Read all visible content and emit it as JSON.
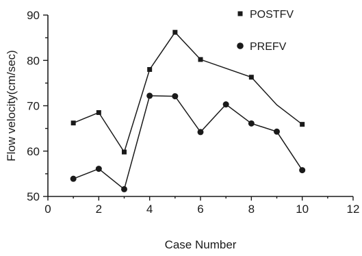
{
  "chart_data": {
    "type": "line",
    "title": "",
    "xlabel": "Case Number",
    "ylabel": "Flow velocity(cm/sec)",
    "xlim": [
      0,
      12
    ],
    "ylim": [
      50,
      90
    ],
    "xticks": [
      0,
      2,
      4,
      6,
      8,
      10,
      12
    ],
    "yticks": [
      50,
      60,
      70,
      80,
      90
    ],
    "grid": false,
    "legend_position": "top-right",
    "series": [
      {
        "name": "POSTFV",
        "marker": "square",
        "color": "#1a1a1a",
        "x": [
          1,
          2,
          3,
          4,
          5,
          6,
          8,
          9,
          10
        ],
        "y": [
          66.2,
          68.5,
          59.8,
          78.0,
          86.2,
          80.2,
          76.3,
          70.2,
          65.9
        ],
        "marker_indices": [
          0,
          1,
          2,
          3,
          4,
          5,
          6,
          8
        ]
      },
      {
        "name": "PREFV",
        "marker": "circle",
        "color": "#1a1a1a",
        "x": [
          1,
          2,
          3,
          4,
          5,
          6,
          7,
          8,
          9,
          10
        ],
        "y": [
          53.9,
          56.1,
          51.6,
          72.2,
          72.1,
          64.2,
          70.3,
          66.1,
          64.3,
          55.8
        ],
        "marker_indices": [
          0,
          1,
          2,
          3,
          4,
          5,
          6,
          7,
          8,
          9
        ]
      }
    ]
  }
}
